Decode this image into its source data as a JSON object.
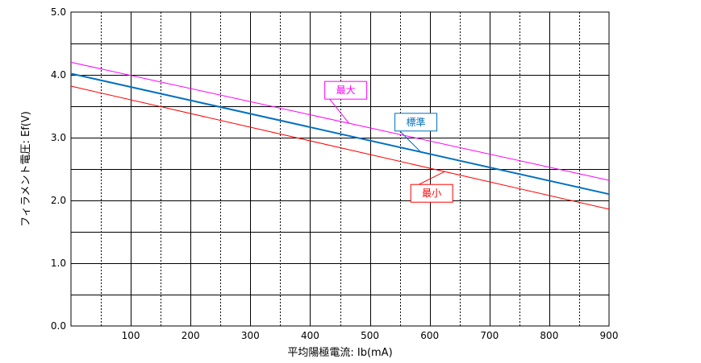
{
  "chart_data": {
    "type": "line",
    "title": "",
    "xlabel": "平均陽極電流: Ib(mA)",
    "ylabel": "フィラメント電圧: Ef(V)",
    "xlim": [
      0,
      900
    ],
    "ylim": [
      0,
      5
    ],
    "x_ticks": [
      "100",
      "200",
      "300",
      "400",
      "500",
      "600",
      "700",
      "800",
      "900"
    ],
    "y_ticks": [
      "0.0",
      "1.0",
      "2.0",
      "3.0",
      "4.0",
      "5.0"
    ],
    "grid": true,
    "series": [
      {
        "name": "最大",
        "x": [
          0,
          900
        ],
        "y": [
          4.2,
          2.32
        ],
        "color": "#ff00ff"
      },
      {
        "name": "標準",
        "x": [
          0,
          900
        ],
        "y": [
          4.02,
          2.1
        ],
        "color": "#0070c0"
      },
      {
        "name": "最小",
        "x": [
          0,
          900
        ],
        "y": [
          3.82,
          1.86
        ],
        "color": "#ff0000"
      }
    ],
    "annotations": [
      {
        "label": "最大",
        "series": 0,
        "point_x": 465,
        "color": "#ff00ff"
      },
      {
        "label": "標準",
        "series": 1,
        "point_x": 585,
        "color": "#0070c0"
      },
      {
        "label": "最小",
        "series": 2,
        "point_x": 625,
        "color": "#ff0000"
      }
    ]
  }
}
